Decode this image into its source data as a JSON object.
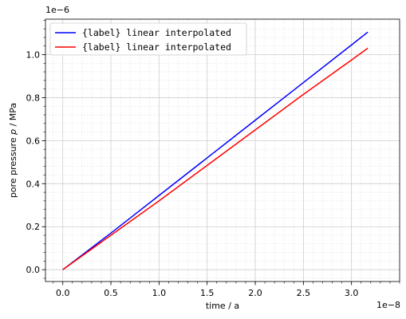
{
  "chart_data": {
    "type": "line",
    "xlabel": "time / a",
    "ylabel_prefix": "pore pressure ",
    "ylabel_symbol": "p",
    "ylabel_suffix": " / MPa",
    "x_offset_label": "1e−8",
    "y_offset_label": "1e−6",
    "xlim": [
      -0.18,
      3.5
    ],
    "ylim": [
      -0.055,
      1.165
    ],
    "x_scale_exponent": -8,
    "y_scale_exponent": -6,
    "x_ticks": [
      0.0,
      0.5,
      1.0,
      1.5,
      2.0,
      2.5,
      3.0
    ],
    "x_tick_labels": [
      "0.0",
      "0.5",
      "1.0",
      "1.5",
      "2.0",
      "2.5",
      "3.0"
    ],
    "y_ticks": [
      0.0,
      0.2,
      0.4,
      0.6,
      0.8,
      1.0
    ],
    "y_tick_labels": [
      "0.0",
      "0.2",
      "0.4",
      "0.6",
      "0.8",
      "1.0"
    ],
    "grid": true,
    "minor_grid": true,
    "legend_placement": "top-left",
    "series": [
      {
        "name": "{label} linear interpolated",
        "color": "#0000ff",
        "x": [
          0.0,
          0.5,
          1.0,
          1.5,
          2.0,
          2.5,
          3.0,
          3.17
        ],
        "y": [
          0.0,
          0.17,
          0.345,
          0.52,
          0.695,
          0.87,
          1.045,
          1.105
        ]
      },
      {
        "name": "{label} linear interpolated",
        "color": "#ff0000",
        "x": [
          0.0,
          0.5,
          1.0,
          1.5,
          2.0,
          2.5,
          3.0,
          3.17
        ],
        "y": [
          0.0,
          0.16,
          0.32,
          0.485,
          0.65,
          0.815,
          0.975,
          1.03
        ]
      }
    ]
  }
}
